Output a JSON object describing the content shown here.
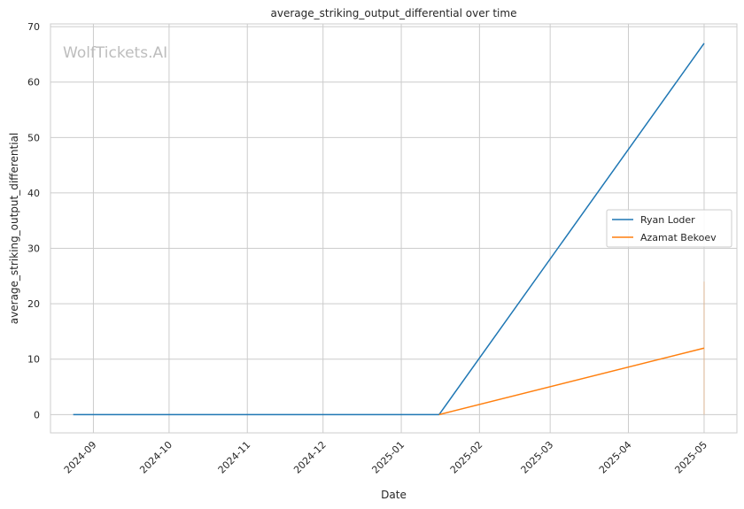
{
  "chart_data": {
    "type": "line",
    "title": "average_striking_output_differential over time",
    "xlabel": "Date",
    "ylabel": "average_striking_output_differential",
    "watermark": "WolfTickets.AI",
    "x_ticks": [
      "2024-09",
      "2024-10",
      "2024-11",
      "2024-12",
      "2025-01",
      "2025-02",
      "2025-03",
      "2025-04",
      "2025-05"
    ],
    "y_ticks": [
      0,
      10,
      20,
      30,
      40,
      50,
      60,
      70
    ],
    "xlim": [
      "2024-08-15",
      "2025-05-14"
    ],
    "ylim": [
      -3.3,
      70.5
    ],
    "grid": true,
    "legend_position": "center-right",
    "series": [
      {
        "name": "Ryan Loder",
        "color": "#1f77b4",
        "points": [
          {
            "x": "2024-08-24",
            "y": 0
          },
          {
            "x": "2025-01-16",
            "y": 0
          },
          {
            "x": "2025-05-01",
            "y": 67
          }
        ]
      },
      {
        "name": "Azamat Bekoev",
        "color": "#ff7f0e",
        "points": [
          {
            "x": "2025-01-16",
            "y": 0
          },
          {
            "x": "2025-05-01",
            "y": 12
          }
        ],
        "error_band": {
          "x": "2025-05-01",
          "low": 0,
          "high": 24
        }
      }
    ]
  }
}
